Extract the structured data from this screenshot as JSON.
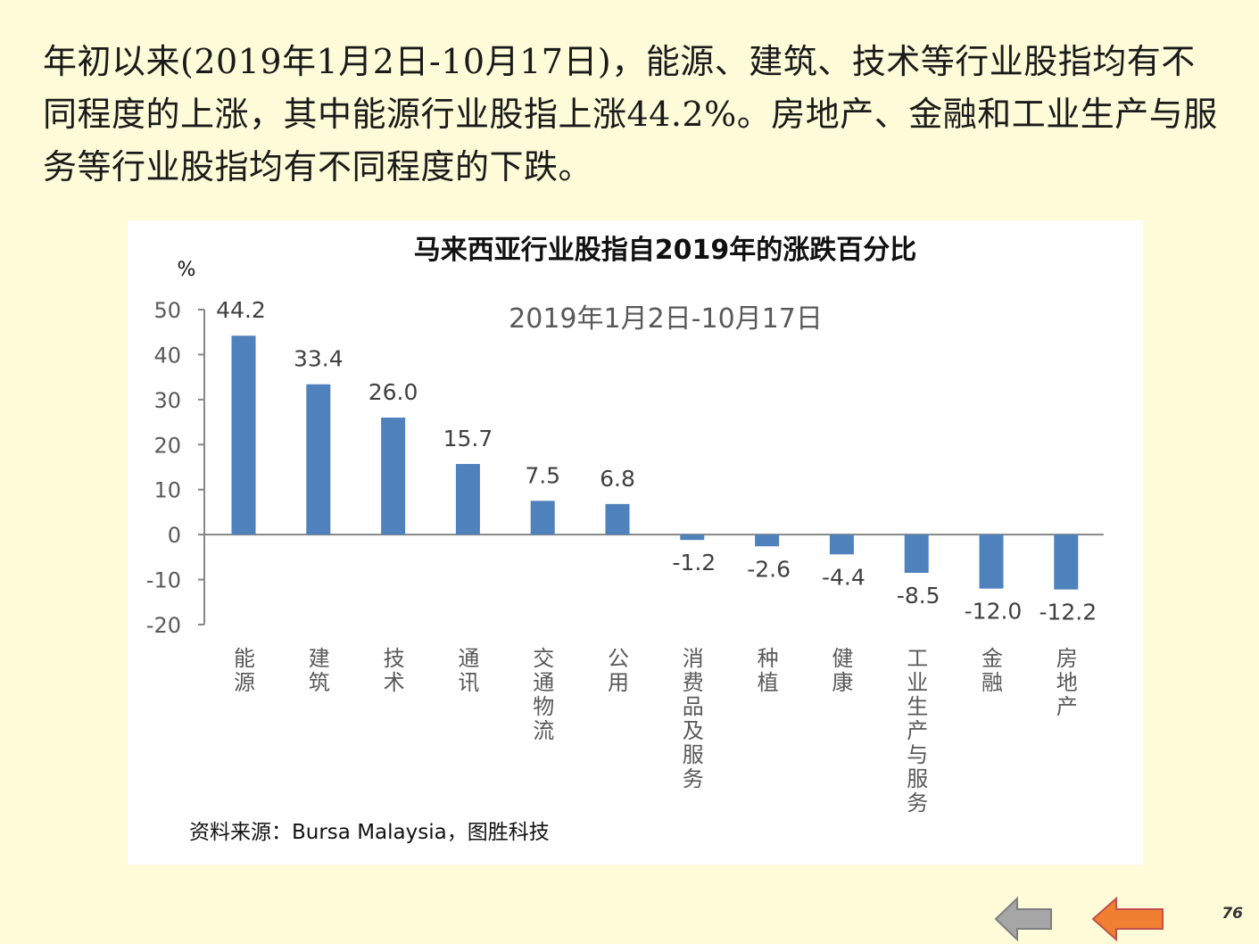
{
  "intro_text": "年初以来(2019年1月2日-10月17日)，能源、建筑、技术等行业股指均有不同程度的上涨，其中能源行业股指上涨44.2%。房地产、金融和工业生产与服务等行业股指均有不同程度的下跌。",
  "page_number": "76",
  "nav": {
    "back_icon": "left-arrow-gray",
    "prev_icon": "left-arrow-orange"
  },
  "colors": {
    "background": "#fdfbd8",
    "bar": "#4f81bd",
    "back_arrow": "#a6a6a6",
    "prev_arrow": "#f07f32"
  },
  "chart_data": {
    "type": "bar",
    "title": "马来西亚行业股指自2019年的涨跌百分比",
    "subtitle": "2019年1月2日-10月17日",
    "ylabel": "%",
    "ylim": [
      -20,
      50
    ],
    "yticks": [
      50,
      40,
      30,
      20,
      10,
      0,
      -10,
      -20
    ],
    "categories": [
      "能源",
      "建筑",
      "技术",
      "通讯",
      "交通物流",
      "公用",
      "消费品及服务",
      "种植",
      "健康",
      "工业生产与服务",
      "金融",
      "房地产"
    ],
    "values": [
      44.2,
      33.4,
      26.0,
      15.7,
      7.5,
      6.8,
      -1.2,
      -2.6,
      -4.4,
      -8.5,
      -12.0,
      -12.2
    ],
    "value_labels": [
      "44.2",
      "33.4",
      "26.0",
      "15.7",
      "7.5",
      "6.8",
      "-1.2",
      "-2.6",
      "-4.4",
      "-8.5",
      "-12.0",
      "-12.2"
    ],
    "source": "资料来源：Bursa  Malaysia，图胜科技",
    "grid": false,
    "legend": "none"
  }
}
